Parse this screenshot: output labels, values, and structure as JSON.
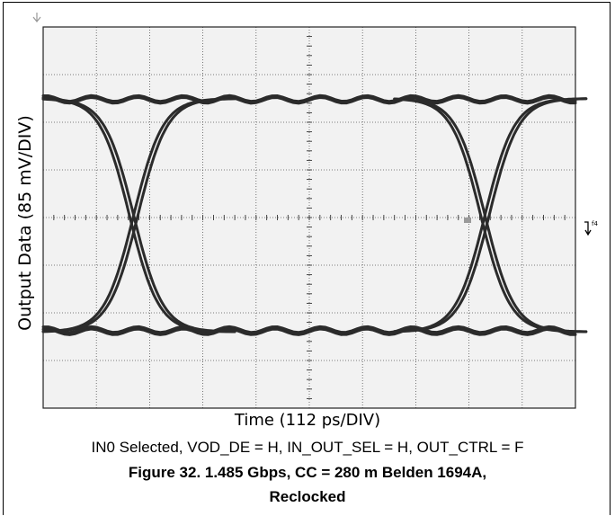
{
  "chart_data": {
    "type": "line",
    "subtype": "eye-diagram",
    "xlabel": "Time (112 ps/DIV)",
    "ylabel": "Output Data (85 mV/DIV)",
    "x_divisions": 10,
    "y_divisions": 8,
    "grid": true,
    "x_unit_per_div_ps": 112,
    "y_unit_per_div_mV": 85,
    "levels_div": {
      "high": 2.5,
      "low": -2.4,
      "center": 0.0
    },
    "crossings_div": [
      -3.3,
      3.3
    ],
    "trigger_marker": "f4",
    "marker_colors": {
      "trace": "#2b2b2b",
      "grid": "#555555",
      "background": "#f2f2f2"
    }
  },
  "caption": {
    "condition": "IN0 Selected, VOD_DE = H, IN_OUT_SEL = H, OUT_CTRL = F",
    "figure_line1": "Figure 32. 1.485 Gbps, CC = 280 m Belden 1694A,",
    "figure_line2": "Reclocked"
  }
}
